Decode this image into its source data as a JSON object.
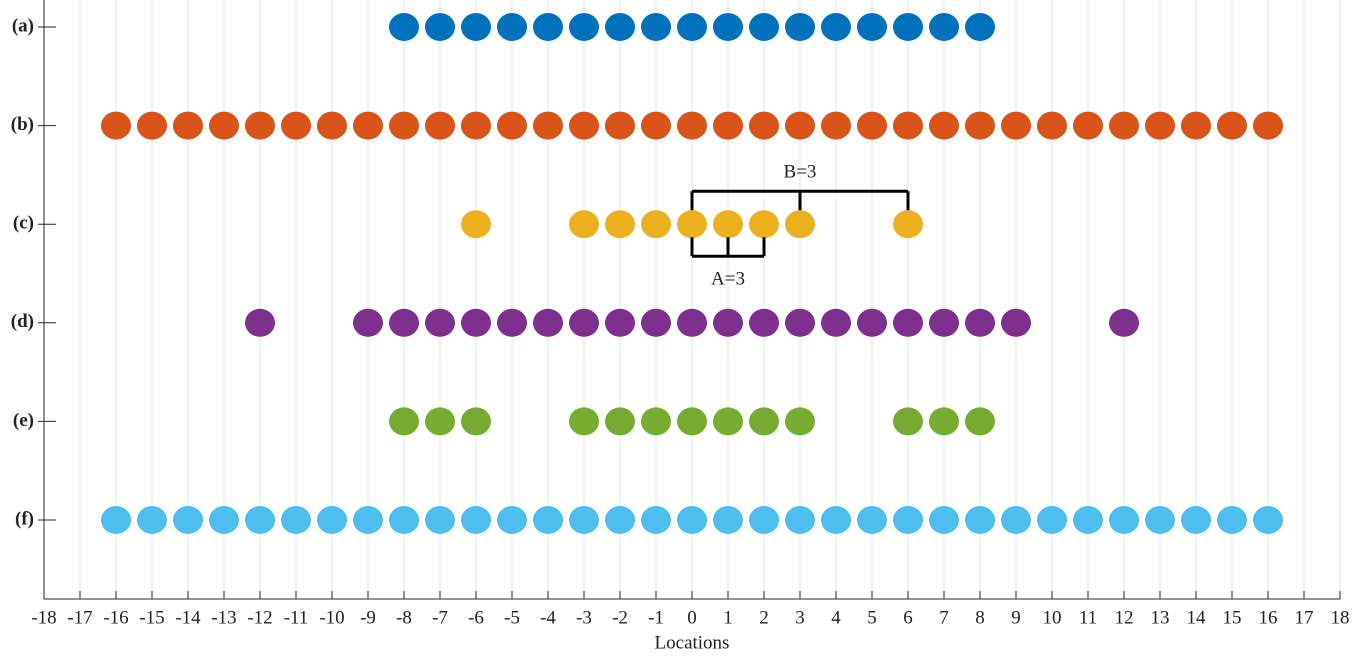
{
  "chart_data": {
    "type": "dot",
    "categories": [
      "(a)",
      "(b)",
      "(c)",
      "(d)",
      "(e)",
      "(f)"
    ],
    "xlabel": "Locations",
    "xlim": [
      -18,
      18
    ],
    "xticks": [
      -18,
      -17,
      -16,
      -15,
      -14,
      -13,
      -12,
      -11,
      -10,
      -9,
      -8,
      -7,
      -6,
      -5,
      -4,
      -3,
      -2,
      -1,
      0,
      1,
      2,
      3,
      4,
      5,
      6,
      7,
      8,
      9,
      10,
      11,
      12,
      13,
      14,
      15,
      16,
      17,
      18
    ],
    "grid": true,
    "series": [
      {
        "color": "#0072bd",
        "x": [
          -8,
          -7,
          -6,
          -5,
          -4,
          -3,
          -2,
          -1,
          0,
          1,
          2,
          3,
          4,
          5,
          6,
          7,
          8
        ]
      },
      {
        "color": "#d95319",
        "x": [
          -16,
          -15,
          -14,
          -13,
          -12,
          -11,
          -10,
          -9,
          -8,
          -7,
          -6,
          -5,
          -4,
          -3,
          -2,
          -1,
          0,
          1,
          2,
          3,
          4,
          5,
          6,
          7,
          8,
          9,
          10,
          11,
          12,
          13,
          14,
          15,
          16
        ]
      },
      {
        "color": "#edb120",
        "x": [
          -6,
          -3,
          -2,
          -1,
          0,
          1,
          2,
          3,
          6
        ],
        "brackets": [
          {
            "label": "B=3",
            "x": [
              0,
              3,
              6
            ],
            "side": "above"
          },
          {
            "label": "A=3",
            "x": [
              0,
              1,
              2
            ],
            "side": "below"
          }
        ]
      },
      {
        "color": "#7e2f8e",
        "x": [
          -12,
          -9,
          -8,
          -7,
          -6,
          -5,
          -4,
          -3,
          -2,
          -1,
          0,
          1,
          2,
          3,
          4,
          5,
          6,
          7,
          8,
          9,
          12
        ]
      },
      {
        "color": "#77ac30",
        "x": [
          -8,
          -7,
          -6,
          -3,
          -2,
          -1,
          0,
          1,
          2,
          3,
          6,
          7,
          8
        ]
      },
      {
        "color": "#4dbeee",
        "x": [
          -16,
          -15,
          -14,
          -13,
          -12,
          -11,
          -10,
          -9,
          -8,
          -7,
          -6,
          -5,
          -4,
          -3,
          -2,
          -1,
          0,
          1,
          2,
          3,
          4,
          5,
          6,
          7,
          8,
          9,
          10,
          11,
          12,
          13,
          14,
          15,
          16
        ]
      }
    ]
  }
}
